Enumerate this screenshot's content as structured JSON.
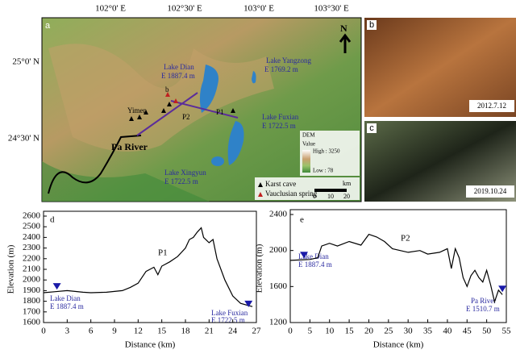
{
  "map": {
    "panel": "a",
    "north": "N",
    "lon_ticks": [
      "102°0' E",
      "102°30' E",
      "103°0' E",
      "103°30' E"
    ],
    "lat_ticks": [
      "25°0' N",
      "24°30' N"
    ],
    "lake_dian": "Lake Dian",
    "lake_dian_elev": "E 1887.4 m",
    "lake_yangzong": "Lake Yangzong",
    "lake_yangzong_elev": "E 1769.2 m",
    "lake_fuxian": "Lake Fuxian",
    "lake_fuxian_elev": "E 1722.5 m",
    "lake_xingyun": "Lake Xingyun",
    "lake_xingyun_elev": "E 1722.5 m",
    "yimen": "Yimen",
    "pa_river": "Pa River",
    "p1": "P1",
    "p2": "P2",
    "site_b": "b",
    "legend_cave": "Karst cave",
    "legend_spring": "Vauclusian spring",
    "dem": "DEM",
    "dem_value": "Value",
    "dem_high": "High : 3250",
    "dem_low": "Low : 78",
    "scale_unit": "km",
    "scale_ticks": [
      "0",
      "10",
      "20"
    ]
  },
  "photos": {
    "b": {
      "panel": "b",
      "date": "2012.7.12"
    },
    "c": {
      "panel": "c",
      "date": "2019.10.24"
    }
  },
  "chart_data": [
    {
      "type": "line",
      "panel": "d",
      "x_label": "Distance (km)",
      "y_label": "Elevation (m)",
      "x": [
        0,
        1.5,
        3,
        5,
        6,
        8,
        10,
        11,
        12,
        13,
        14,
        14.5,
        15,
        16,
        17,
        18,
        18.5,
        19,
        19.5,
        20,
        20.3,
        21,
        21.5,
        22,
        23,
        24,
        25,
        26,
        26.5
      ],
      "values": [
        1880,
        1890,
        1900,
        1885,
        1880,
        1885,
        1900,
        1930,
        1970,
        2080,
        2120,
        2050,
        2130,
        2170,
        2220,
        2300,
        2380,
        2400,
        2450,
        2490,
        2400,
        2350,
        2380,
        2200,
        2000,
        1850,
        1780,
        1760,
        1750
      ],
      "color": "#000000",
      "markers": {
        "x": [
          1.7,
          26
        ],
        "values": [
          1887.4,
          1722.5
        ],
        "color": "#1a1aa8"
      },
      "annotations": [
        "P1",
        "Lake Dian",
        "E 1887.4 m",
        "Lake Fuxian",
        "E 1722.5 m"
      ],
      "xlim": [
        0,
        27
      ],
      "ylim": [
        1600,
        2600
      ],
      "xticks": [
        0,
        3,
        6,
        9,
        12,
        15,
        18,
        21,
        24,
        27
      ],
      "yticks": [
        1600,
        1700,
        1800,
        1900,
        2000,
        2100,
        2200,
        2300,
        2400,
        2500,
        2600
      ]
    },
    {
      "type": "line",
      "panel": "e",
      "x_label": "Distance (km)",
      "y_label": "Elevation (m)",
      "x": [
        0,
        5,
        7,
        8,
        10,
        12,
        15,
        18,
        20,
        22,
        24,
        26,
        28,
        30,
        33,
        35,
        38,
        40,
        41,
        42,
        43,
        44,
        45,
        46,
        47,
        48,
        49,
        50,
        51,
        52,
        53,
        54
      ],
      "values": [
        1890,
        1900,
        1920,
        2050,
        2080,
        2050,
        2100,
        2060,
        2180,
        2150,
        2100,
        2020,
        2000,
        1980,
        2000,
        1960,
        1980,
        2020,
        1800,
        2020,
        1920,
        1700,
        1600,
        1720,
        1780,
        1700,
        1650,
        1780,
        1620,
        1430,
        1560,
        1510
      ],
      "color": "#000000",
      "markers": {
        "x": [
          3.5,
          54
        ],
        "values": [
          1887.4,
          1510.7
        ],
        "color": "#1a1aa8"
      },
      "annotations": [
        "P2",
        "Lake Dian",
        "E 1887.4 m",
        "Pa River",
        "E 1510.7 m"
      ],
      "xlim": [
        0,
        55
      ],
      "ylim": [
        1200,
        2400
      ],
      "xticks": [
        0,
        5,
        10,
        15,
        20,
        25,
        30,
        35,
        40,
        45,
        50,
        55
      ],
      "yticks": [
        1200,
        1600,
        2000,
        2400
      ]
    }
  ]
}
